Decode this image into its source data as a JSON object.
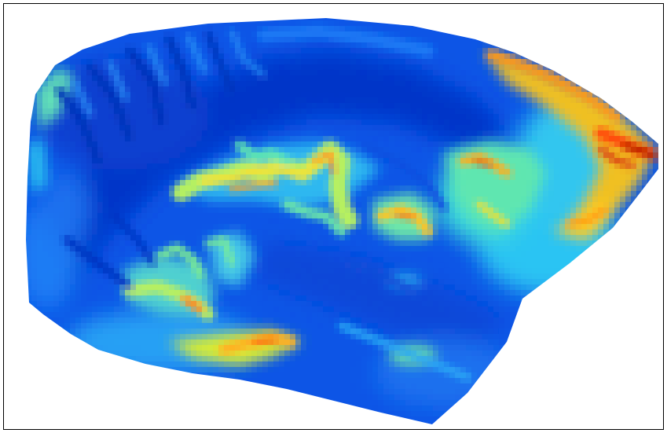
{
  "map": {
    "type": "raster-heatmap",
    "colormap": "jet",
    "colormap_stops": [
      "#00007f",
      "#0000ff",
      "#007fff",
      "#00ffff",
      "#7fff7f",
      "#ffff00",
      "#ff7f00",
      "#ff0000",
      "#7f0000"
    ],
    "background": "#ffffff",
    "frame_color": "#000000",
    "axes_visible": false,
    "colorbar_visible": false,
    "title": ""
  }
}
